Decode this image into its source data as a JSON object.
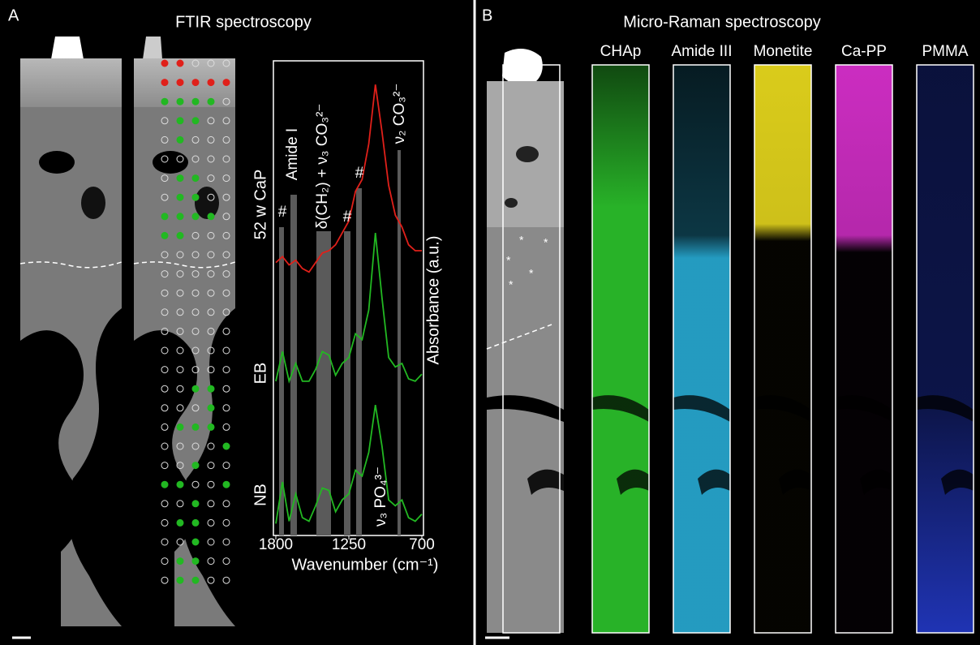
{
  "chart_data": {
    "type": "line",
    "title": "FTIR spectroscopy",
    "xlabel": "Wavenumber (cm⁻¹)",
    "ylabel": "Absorbance (a.u.)",
    "x": [
      1800,
      1750,
      1700,
      1650,
      1600,
      1550,
      1500,
      1450,
      1400,
      1350,
      1300,
      1250,
      1200,
      1150,
      1100,
      1050,
      1000,
      950,
      900,
      850,
      800,
      750,
      700
    ],
    "xlim": [
      1800,
      700
    ],
    "xticks": [
      1800,
      1250,
      700
    ],
    "ylim": [
      0,
      4
    ],
    "series": [
      {
        "name": "52 w CaP",
        "color": "#e0201a",
        "values": [
          2.3,
          2.35,
          2.28,
          2.32,
          2.25,
          2.22,
          2.3,
          2.38,
          2.4,
          2.45,
          2.55,
          2.65,
          2.9,
          3.0,
          3.3,
          3.8,
          3.4,
          2.95,
          2.7,
          2.6,
          2.45,
          2.4,
          2.4
        ]
      },
      {
        "name": "EB",
        "color": "#22b822",
        "values": [
          1.3,
          1.55,
          1.3,
          1.45,
          1.3,
          1.3,
          1.4,
          1.55,
          1.52,
          1.35,
          1.45,
          1.5,
          1.7,
          1.65,
          1.9,
          2.55,
          2.0,
          1.5,
          1.42,
          1.45,
          1.32,
          1.3,
          1.36
        ]
      },
      {
        "name": "NB",
        "color": "#22b822",
        "values": [
          0.1,
          0.45,
          0.12,
          0.35,
          0.15,
          0.12,
          0.25,
          0.4,
          0.38,
          0.2,
          0.3,
          0.35,
          0.55,
          0.5,
          0.7,
          1.1,
          0.75,
          0.3,
          0.25,
          0.3,
          0.15,
          0.12,
          0.18
        ]
      }
    ],
    "annotations": [
      "#",
      "Amide I",
      "δ(CH₂) + ν₃ CO₃²⁻",
      "#",
      "#",
      "ν₂ CO₃²⁻",
      "ν₃ PO₄³⁻"
    ]
  },
  "panel_a": {
    "label": "A"
  },
  "panel_b": {
    "label": "B",
    "title": "Micro-Raman spectroscopy",
    "maps": [
      {
        "name": "CHAp",
        "color": "#2fd12f"
      },
      {
        "name": "Amide III",
        "color": "#2ab6e2"
      },
      {
        "name": "Monetite",
        "color": "#f2e21e"
      },
      {
        "name": "Ca-PP",
        "color": "#e232d6"
      },
      {
        "name": "PMMA",
        "color": "#2a45f0"
      }
    ]
  }
}
